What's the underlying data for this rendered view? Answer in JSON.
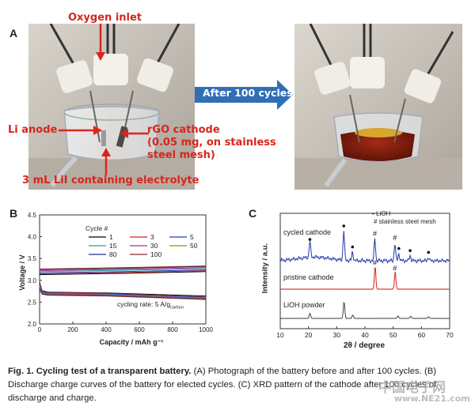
{
  "panels": {
    "a_letter": "A",
    "b_letter": "B",
    "c_letter": "C"
  },
  "photo_labels": {
    "oxygen_inlet": "Oxygen inlet",
    "li_anode": "Li anode",
    "rgo_cathode_1": "rGO cathode",
    "rgo_cathode_2": "(0.05 mg, on stainless",
    "rgo_cathode_3": "steel mesh)",
    "electrolyte": "3 mL LiI containing electrolyte",
    "arrow": "After 100 cycles"
  },
  "chart_b": {
    "type": "line",
    "xlabel": "Capacity / mAh g⁻¹",
    "ylabel": "Voltage / V",
    "xlim": [
      0,
      1000
    ],
    "ylim": [
      2.0,
      4.5
    ],
    "xticks": [
      "0",
      "200",
      "400",
      "600",
      "800",
      "1000"
    ],
    "yticks": [
      "2.0",
      "2.5",
      "3.0",
      "3.5",
      "4.0",
      "4.5"
    ],
    "legend_title": "Cycle #",
    "legend_entries": [
      "1",
      "3",
      "5",
      "15",
      "30",
      "50",
      "80",
      "100"
    ],
    "annotation": "cycling rate: 5 A/g",
    "annotation_sub": "carbon"
  },
  "chart_c": {
    "type": "line",
    "xlabel": "2θ / degree",
    "ylabel": "Intensity / a.u.",
    "xlim": [
      10,
      70
    ],
    "xticks": [
      "10",
      "20",
      "30",
      "40",
      "50",
      "60",
      "70"
    ],
    "legend_dot": "• LiOH",
    "legend_hash": "# stainless steel mesh",
    "traces": [
      "cycled cathode",
      "pristine cathode",
      "LiOH powder"
    ]
  },
  "chart_data": [
    {
      "type": "line",
      "title": "",
      "xlabel": "Capacity / mAh g⁻¹",
      "ylabel": "Voltage / V",
      "xlim": [
        0,
        1000
      ],
      "ylim": [
        2.0,
        4.5
      ],
      "series": [
        {
          "name": "1",
          "color": "#000000",
          "discharge": [
            [
              0,
              2.95
            ],
            [
              15,
              2.76
            ],
            [
              50,
              2.73
            ],
            [
              400,
              2.71
            ],
            [
              1000,
              2.64
            ]
          ],
          "charge": [
            [
              0,
              3.13
            ],
            [
              500,
              3.16
            ],
            [
              1000,
              3.2
            ]
          ]
        },
        {
          "name": "3",
          "color": "#d22020",
          "discharge": [
            [
              0,
              2.92
            ],
            [
              15,
              2.74
            ],
            [
              50,
              2.72
            ],
            [
              400,
              2.7
            ],
            [
              1000,
              2.62
            ]
          ],
          "charge": [
            [
              0,
              3.15
            ],
            [
              500,
              3.18
            ],
            [
              1000,
              3.22
            ]
          ]
        },
        {
          "name": "5",
          "color": "#1f3fbf",
          "discharge": [
            [
              0,
              2.9
            ],
            [
              15,
              2.73
            ],
            [
              50,
              2.71
            ],
            [
              400,
              2.69
            ],
            [
              1000,
              2.61
            ]
          ],
          "charge": [
            [
              0,
              3.17
            ],
            [
              500,
              3.2
            ],
            [
              1000,
              3.24
            ]
          ]
        },
        {
          "name": "15",
          "color": "#1aa5b8",
          "discharge": [
            [
              0,
              2.88
            ],
            [
              15,
              2.72
            ],
            [
              50,
              2.7
            ],
            [
              400,
              2.68
            ],
            [
              1000,
              2.6
            ]
          ],
          "charge": [
            [
              0,
              3.2
            ],
            [
              500,
              3.23
            ],
            [
              1000,
              3.27
            ]
          ]
        },
        {
          "name": "30",
          "color": "#b02cb0",
          "discharge": [
            [
              0,
              2.86
            ],
            [
              15,
              2.71
            ],
            [
              50,
              2.69
            ],
            [
              400,
              2.67
            ],
            [
              1000,
              2.59
            ]
          ],
          "charge": [
            [
              0,
              3.22
            ],
            [
              500,
              3.25
            ],
            [
              1000,
              3.29
            ]
          ]
        },
        {
          "name": "50",
          "color": "#9a8a00",
          "discharge": [
            [
              0,
              2.84
            ],
            [
              15,
              2.7
            ],
            [
              50,
              2.68
            ],
            [
              400,
              2.66
            ],
            [
              1000,
              2.58
            ]
          ],
          "charge": [
            [
              0,
              3.24
            ],
            [
              500,
              3.27
            ],
            [
              1000,
              3.31
            ]
          ]
        },
        {
          "name": "80",
          "color": "#1a2f8f",
          "discharge": [
            [
              0,
              2.82
            ],
            [
              15,
              2.69
            ],
            [
              50,
              2.67
            ],
            [
              400,
              2.65
            ],
            [
              1000,
              2.57
            ]
          ],
          "charge": [
            [
              0,
              3.25
            ],
            [
              500,
              3.28
            ],
            [
              1000,
              3.32
            ]
          ]
        },
        {
          "name": "100",
          "color": "#8b2a2a",
          "discharge": [
            [
              0,
              2.8
            ],
            [
              15,
              2.68
            ],
            [
              50,
              2.66
            ],
            [
              400,
              2.64
            ],
            [
              1000,
              2.56
            ]
          ],
          "charge": [
            [
              0,
              3.26
            ],
            [
              500,
              3.29
            ],
            [
              1000,
              3.33
            ]
          ]
        }
      ]
    },
    {
      "type": "line",
      "title": "",
      "xlabel": "2θ / degree",
      "ylabel": "Intensity / a.u.",
      "xlim": [
        10,
        70
      ],
      "series": [
        {
          "name": "cycled cathode",
          "color": "#2035a8",
          "peaks": [
            [
              20.5,
              0.55
            ],
            [
              32.5,
              1.0
            ],
            [
              35.6,
              0.3
            ],
            [
              43.5,
              0.75
            ],
            [
              50.6,
              0.6
            ],
            [
              52.0,
              0.25
            ],
            [
              56.0,
              0.18
            ],
            [
              62.5,
              0.12
            ]
          ]
        },
        {
          "name": "pristine cathode",
          "color": "#d82020",
          "peaks": [
            [
              43.6,
              1.0
            ],
            [
              50.7,
              0.75
            ]
          ]
        },
        {
          "name": "LiOH powder",
          "color": "#444444",
          "peaks": [
            [
              20.5,
              0.3
            ],
            [
              32.6,
              1.0
            ],
            [
              35.7,
              0.2
            ],
            [
              51.7,
              0.15
            ],
            [
              56.2,
              0.12
            ],
            [
              62.5,
              0.1
            ]
          ]
        }
      ],
      "markers": {
        "lioh_dot": [
          20.5,
          32.5,
          35.6,
          52.0,
          56.0,
          62.5
        ],
        "steel_hash": [
          43.5,
          50.6
        ]
      }
    }
  ],
  "caption": {
    "label": "Fig. 1. Cycling test of a transparent battery.",
    "text_a": " (A) Photograph of the battery before and after 100 cycles. (B) Discharge charge curves of the battery for elected cycles. (C) XRD pattern of the cathode after 100 cycles of discharge and charge."
  },
  "watermarks": {
    "w1": "中国电子网",
    "w2": "www.NE21.com"
  }
}
